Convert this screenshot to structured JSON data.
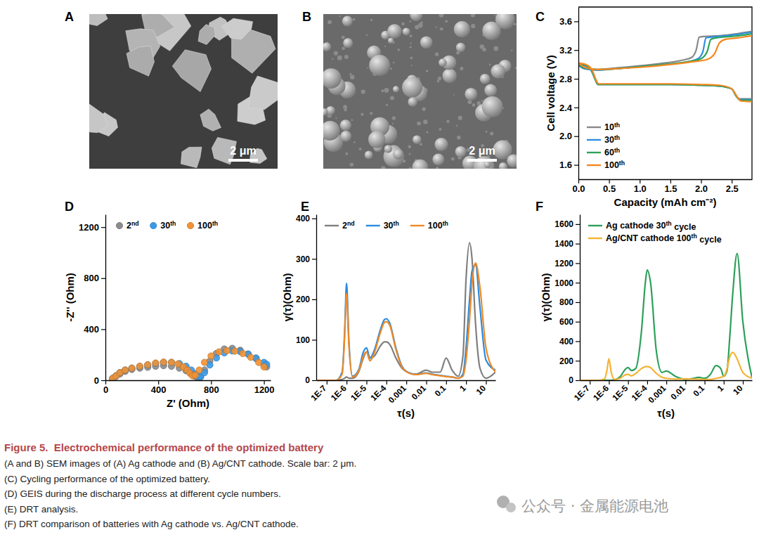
{
  "images": [
    {
      "panel": "A",
      "scale_bar": "2 μm"
    },
    {
      "panel": "B",
      "scale_bar": "2 μm"
    }
  ],
  "chart_data": [
    {
      "panel": "C",
      "type": "line",
      "x_label": "Capacity (mAh cm⁻²)",
      "y_label": "Cell voltage (V)",
      "xlim": [
        0,
        2.83
      ],
      "ylim": [
        1.4,
        3.8
      ],
      "xticks": [
        {
          "value": 0,
          "label": "0.0"
        },
        0.5,
        {
          "value": 1,
          "label": "1.0"
        },
        1.5,
        {
          "value": 2,
          "label": "2.0"
        },
        2.5
      ],
      "yticks": [
        1.6,
        {
          "value": 2,
          "label": "2.0"
        },
        2.4,
        2.8,
        3.2,
        3.6
      ],
      "legend": "bottom-left",
      "series": [
        {
          "name": "10th",
          "color": "#888888",
          "x": [
            0,
            0.1,
            0.3,
            0.6,
            1.0,
            1.4,
            1.7,
            1.85,
            1.92,
            1.97,
            2.05,
            2.3,
            2.6,
            2.83,
            null,
            0,
            0.12,
            0.22,
            0.28,
            0.32,
            0.6,
            1.0,
            1.5,
            2.0,
            2.3,
            2.5,
            2.56,
            2.62,
            2.83
          ],
          "values": [
            2.99,
            2.94,
            2.93,
            2.95,
            2.98,
            3.02,
            3.06,
            3.1,
            3.2,
            3.38,
            3.39,
            3.4,
            3.43,
            3.46,
            null,
            3.0,
            2.98,
            2.9,
            2.78,
            2.72,
            2.72,
            2.72,
            2.72,
            2.71,
            2.7,
            2.66,
            2.58,
            2.52,
            2.52
          ]
        },
        {
          "name": "30th",
          "color": "#2e8fe0",
          "x": [
            0,
            0.1,
            0.3,
            0.6,
            1.0,
            1.4,
            1.8,
            1.95,
            2.03,
            2.08,
            2.15,
            2.4,
            2.6,
            2.83,
            null,
            0,
            0.12,
            0.22,
            0.28,
            0.32,
            0.6,
            1.0,
            1.5,
            2.0,
            2.3,
            2.5,
            2.57,
            2.63,
            2.83
          ],
          "values": [
            2.99,
            2.94,
            2.92,
            2.94,
            2.97,
            3.0,
            3.04,
            3.08,
            3.18,
            3.37,
            3.38,
            3.4,
            3.42,
            3.45,
            null,
            3.0,
            2.98,
            2.9,
            2.78,
            2.72,
            2.72,
            2.72,
            2.72,
            2.71,
            2.7,
            2.66,
            2.57,
            2.51,
            2.51
          ]
        },
        {
          "name": "60th",
          "color": "#2ca35a",
          "x": [
            0,
            0.1,
            0.3,
            0.6,
            1.0,
            1.4,
            1.8,
            2.0,
            2.1,
            2.16,
            2.25,
            2.5,
            2.7,
            2.83,
            null,
            0,
            0.12,
            0.22,
            0.28,
            0.32,
            0.6,
            1.0,
            1.5,
            2.0,
            2.3,
            2.5,
            2.57,
            2.64,
            2.83
          ],
          "values": [
            3.0,
            2.95,
            2.93,
            2.94,
            2.97,
            3.0,
            3.04,
            3.08,
            3.18,
            3.35,
            3.37,
            3.39,
            3.41,
            3.43,
            null,
            3.01,
            2.99,
            2.91,
            2.78,
            2.72,
            2.72,
            2.72,
            2.72,
            2.71,
            2.7,
            2.66,
            2.56,
            2.5,
            2.5
          ]
        },
        {
          "name": "100th",
          "color": "#f5871f",
          "x": [
            0,
            0.1,
            0.3,
            0.6,
            1.0,
            1.4,
            1.8,
            2.1,
            2.22,
            2.3,
            2.4,
            2.6,
            2.75,
            2.83,
            null,
            0,
            0.12,
            0.22,
            0.28,
            0.33,
            0.6,
            1.0,
            1.5,
            2.0,
            2.3,
            2.5,
            2.58,
            2.65,
            2.83
          ],
          "values": [
            3.02,
            2.96,
            2.93,
            2.94,
            2.96,
            2.99,
            3.03,
            3.07,
            3.15,
            3.3,
            3.35,
            3.37,
            3.39,
            3.4,
            null,
            3.02,
            3.0,
            2.93,
            2.8,
            2.73,
            2.73,
            2.73,
            2.73,
            2.72,
            2.71,
            2.66,
            2.56,
            2.49,
            2.48
          ]
        }
      ]
    },
    {
      "panel": "D",
      "type": "scatter",
      "marker": "circle",
      "x_label": "Z' (Ohm)",
      "y_label": "-Z'' (Ohm)",
      "xlim": [
        0,
        1250
      ],
      "ylim": [
        0,
        1300
      ],
      "xticks": [
        0,
        400,
        800,
        1200
      ],
      "yticks": [
        0,
        400,
        800,
        1200
      ],
      "legend": "top-left",
      "series": [
        {
          "name": "2nd",
          "color": "#8c8c8c",
          "x": [
            55,
            80,
            110,
            150,
            200,
            260,
            320,
            380,
            440,
            500,
            560,
            610,
            650,
            680,
            700,
            720,
            750,
            790,
            840,
            900,
            960,
            1020,
            1080,
            1140,
            1200,
            1220
          ],
          "values": [
            10,
            30,
            50,
            70,
            85,
            95,
            102,
            110,
            115,
            110,
            95,
            75,
            50,
            30,
            20,
            25,
            80,
            150,
            210,
            245,
            250,
            235,
            205,
            170,
            120,
            105
          ]
        },
        {
          "name": "30th",
          "color": "#3a9ae8",
          "x": [
            55,
            80,
            110,
            150,
            200,
            260,
            320,
            380,
            440,
            500,
            560,
            610,
            650,
            680,
            700,
            720,
            750,
            790,
            840,
            900,
            960,
            1020,
            1080,
            1140,
            1200,
            1220
          ],
          "values": [
            15,
            35,
            60,
            80,
            95,
            108,
            120,
            132,
            140,
            140,
            130,
            110,
            80,
            50,
            30,
            28,
            60,
            120,
            175,
            215,
            230,
            225,
            205,
            175,
            140,
            125
          ]
        },
        {
          "name": "100th",
          "color": "#f39233",
          "x": [
            55,
            80,
            110,
            150,
            200,
            260,
            320,
            380,
            440,
            500,
            550,
            590,
            620,
            640,
            660,
            680,
            710,
            750,
            800,
            860,
            920,
            980,
            1040,
            1100,
            1160,
            1200
          ],
          "values": [
            15,
            35,
            60,
            80,
            95,
            110,
            122,
            135,
            142,
            140,
            128,
            105,
            80,
            55,
            35,
            40,
            80,
            140,
            190,
            222,
            232,
            228,
            210,
            180,
            140,
            105
          ]
        }
      ]
    },
    {
      "panel": "E",
      "type": "line",
      "log": "x",
      "x_label": "τ(s)",
      "y_label": "γ(τ)(Ohm)",
      "xlim": [
        3e-08,
        30
      ],
      "ylim": [
        0,
        410
      ],
      "xticks": [
        {
          "value": 1e-07,
          "label": "1E-7"
        },
        {
          "value": 1e-06,
          "label": "1E-6"
        },
        {
          "value": 1e-05,
          "label": "1E-5"
        },
        {
          "value": 0.0001,
          "label": "1E-4"
        },
        0.001,
        0.01,
        0.1,
        1,
        10
      ],
      "yticks": [
        0,
        100,
        200,
        300,
        400
      ],
      "legend": "top-left",
      "x": [
        3e-08,
        1e-07,
        3e-07,
        6e-07,
        8e-07,
        1e-06,
        1.3e-06,
        2e-06,
        4e-06,
        7e-06,
        1e-05,
        1.5e-05,
        2.5e-05,
        5e-05,
        8e-05,
        0.0001,
        0.00015,
        0.0003,
        0.0006,
        0.001,
        0.003,
        0.01,
        0.02,
        0.05,
        0.1,
        0.2,
        0.4,
        0.7,
        1,
        1.5,
        2,
        3,
        5,
        10,
        30
      ],
      "series": [
        {
          "name": "2nd",
          "color": "#7f7f7f",
          "values": [
            0,
            0,
            0,
            2,
            5,
            8,
            5,
            5,
            20,
            55,
            70,
            55,
            60,
            85,
            95,
            95,
            88,
            55,
            30,
            22,
            15,
            25,
            20,
            20,
            55,
            25,
            10,
            60,
            250,
            340,
            300,
            140,
            30,
            5,
            20
          ]
        },
        {
          "name": "30th",
          "color": "#2a8be0",
          "values": [
            0,
            0,
            0,
            20,
            120,
            240,
            100,
            10,
            25,
            70,
            80,
            55,
            75,
            125,
            150,
            152,
            140,
            80,
            35,
            22,
            15,
            18,
            15,
            12,
            10,
            8,
            5,
            15,
            80,
            200,
            270,
            285,
            180,
            50,
            25
          ]
        },
        {
          "name": "100th",
          "color": "#f08a24",
          "values": [
            0,
            0,
            0,
            15,
            110,
            215,
            90,
            8,
            22,
            60,
            70,
            48,
            68,
            118,
            143,
            145,
            135,
            76,
            33,
            21,
            14,
            17,
            14,
            11,
            9,
            8,
            5,
            10,
            50,
            150,
            240,
            290,
            230,
            80,
            20
          ]
        }
      ]
    },
    {
      "panel": "F",
      "type": "line",
      "log": "x",
      "x_label": "τ(s)",
      "y_label": "γ(τ)(Ohm)",
      "xlim": [
        3e-08,
        30
      ],
      "ylim": [
        0,
        1700
      ],
      "xticks": [
        {
          "value": 1e-07,
          "label": "1E-7"
        },
        {
          "value": 1e-06,
          "label": "1E-6"
        },
        {
          "value": 1e-05,
          "label": "1E-5"
        },
        {
          "value": 0.0001,
          "label": "1E-4"
        },
        0.001,
        0.01,
        0.1,
        1,
        10
      ],
      "yticks": [
        0,
        200,
        400,
        600,
        800,
        1000,
        1200,
        1400,
        1600
      ],
      "legend": "top-left",
      "x": [
        3e-08,
        1e-07,
        3e-07,
        6e-07,
        8e-07,
        1e-06,
        1.3e-06,
        2e-06,
        4e-06,
        7e-06,
        1e-05,
        1.5e-05,
        2.5e-05,
        5e-05,
        8e-05,
        0.0001,
        0.00015,
        0.0003,
        0.0006,
        0.001,
        0.003,
        0.01,
        0.02,
        0.05,
        0.1,
        0.2,
        0.4,
        0.7,
        1,
        1.5,
        2,
        3,
        5,
        10,
        30
      ],
      "series": [
        {
          "name": "Ag cathode 30th cycle",
          "color": "#2ca05a",
          "values": [
            0,
            0,
            0,
            0,
            0,
            0,
            0,
            5,
            40,
            110,
            130,
            100,
            120,
            500,
            1000,
            1130,
            1000,
            300,
            80,
            95,
            40,
            10,
            15,
            30,
            20,
            60,
            150,
            120,
            40,
            100,
            400,
            900,
            1300,
            600,
            30
          ]
        },
        {
          "name": "Ag/CNT cathode 100th cycle",
          "color": "#f5b335",
          "values": [
            0,
            0,
            0,
            15,
            110,
            220,
            90,
            8,
            22,
            55,
            60,
            45,
            70,
            120,
            140,
            142,
            130,
            70,
            30,
            20,
            12,
            15,
            12,
            10,
            9,
            8,
            20,
            30,
            40,
            120,
            230,
            285,
            220,
            80,
            20
          ]
        }
      ]
    }
  ],
  "caption": {
    "title": "Figure 5.  Electrochemical performance of the optimized battery",
    "lines": [
      "(A and B) SEM images of (A) Ag cathode and (B) Ag/CNT cathode. Scale bar: 2 μm.",
      "(C) Cycling performance of the optimized battery.",
      "(D) GEIS during the discharge process at different cycle numbers.",
      "(E) DRT analysis.",
      "(F) DRT comparison of batteries with Ag cathode vs. Ag/CNT cathode."
    ]
  },
  "watermark": "公众号 · 金属能源电池"
}
